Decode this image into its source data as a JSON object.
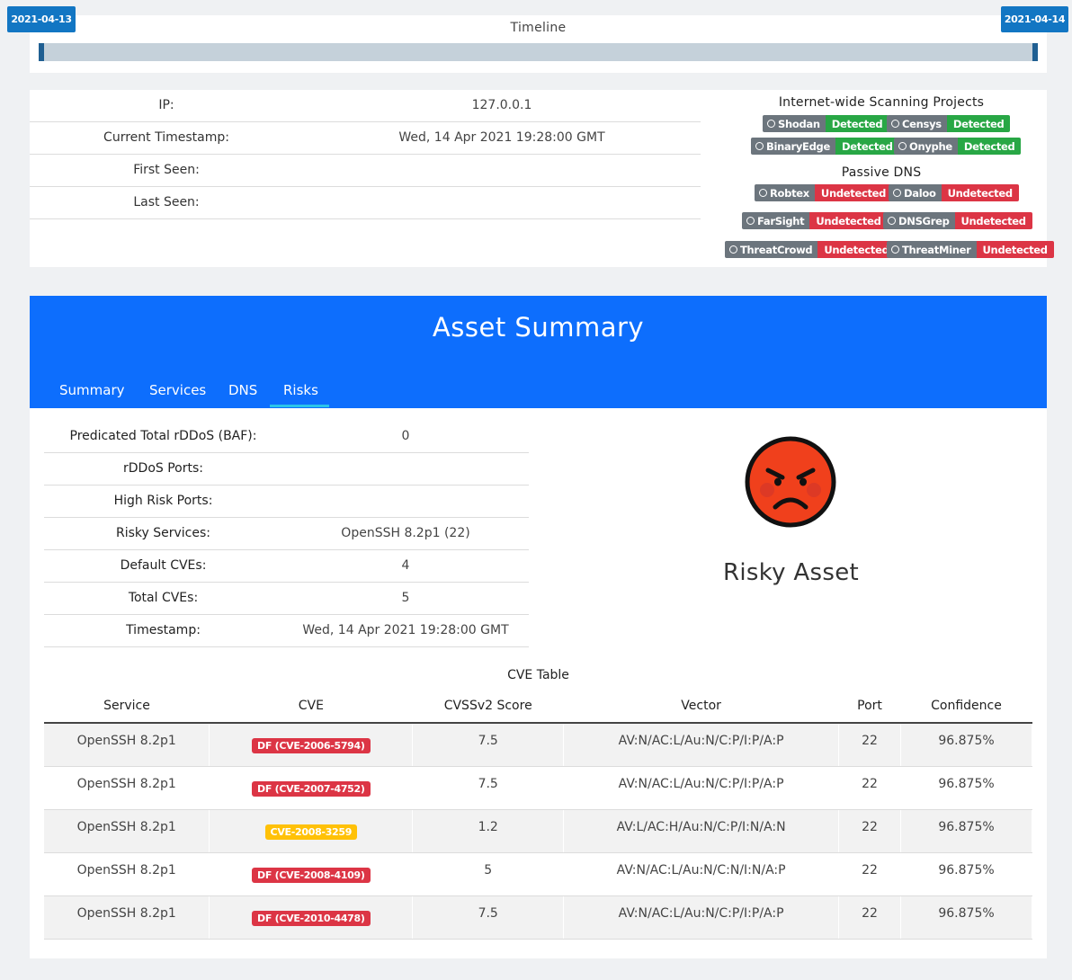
{
  "timeline": {
    "title": "Timeline",
    "start_date": "2021-04-13",
    "end_date": "2021-04-14"
  },
  "info": {
    "rows": [
      {
        "label": "IP:",
        "value": "127.0.0.1"
      },
      {
        "label": "Current Timestamp:",
        "value": "Wed, 14 Apr 2021 19:28:00 GMT"
      },
      {
        "label": "First Seen:",
        "value": ""
      },
      {
        "label": "Last Seen:",
        "value": ""
      }
    ]
  },
  "scanning": {
    "heading": "Internet-wide Scanning Projects",
    "tags": [
      {
        "name": "Shodan",
        "status": "Detected"
      },
      {
        "name": "Censys",
        "status": "Detected"
      },
      {
        "name": "BinaryEdge",
        "status": "Detected"
      },
      {
        "name": "Onyphe",
        "status": "Detected"
      }
    ]
  },
  "passive_dns": {
    "heading": "Passive DNS",
    "tags": [
      {
        "name": "Robtex",
        "status": "Undetected"
      },
      {
        "name": "Daloo",
        "status": "Undetected"
      },
      {
        "name": "FarSight",
        "status": "Undetected"
      },
      {
        "name": "DNSGrep",
        "status": "Undetected"
      },
      {
        "name": "ThreatCrowd",
        "status": "Undetected"
      },
      {
        "name": "ThreatMiner",
        "status": "Undetected"
      }
    ]
  },
  "asset": {
    "title": "Asset Summary",
    "tabs": [
      "Summary",
      "Services",
      "DNS",
      "Risks"
    ],
    "active_tab": "Risks",
    "risk_rows": [
      {
        "label": "Predicated Total rDDoS (BAF):",
        "value": "0"
      },
      {
        "label": "rDDoS Ports:",
        "value": ""
      },
      {
        "label": "High Risk Ports:",
        "value": ""
      },
      {
        "label": "Risky Services:",
        "value": "OpenSSH 8.2p1 (22)"
      },
      {
        "label": "Default CVEs:",
        "value": "4"
      },
      {
        "label": "Total CVEs:",
        "value": "5"
      },
      {
        "label": "Timestamp:",
        "value": "Wed, 14 Apr 2021 19:28:00 GMT"
      }
    ],
    "verdict": "Risky Asset",
    "verdict_icon": "angry-face-icon"
  },
  "cve_table": {
    "title": "CVE Table",
    "headers": [
      "Service",
      "CVE",
      "CVSSv2 Score",
      "Vector",
      "Port",
      "Confidence"
    ],
    "rows": [
      {
        "service": "OpenSSH 8.2p1",
        "cve": "DF (CVE-2006-5794)",
        "cve_color": "red",
        "score": "7.5",
        "vector": "AV:N/AC:L/Au:N/C:P/I:P/A:P",
        "port": "22",
        "confidence": "96.875%"
      },
      {
        "service": "OpenSSH 8.2p1",
        "cve": "DF (CVE-2007-4752)",
        "cve_color": "red",
        "score": "7.5",
        "vector": "AV:N/AC:L/Au:N/C:P/I:P/A:P",
        "port": "22",
        "confidence": "96.875%"
      },
      {
        "service": "OpenSSH 8.2p1",
        "cve": "CVE-2008-3259",
        "cve_color": "yellow",
        "score": "1.2",
        "vector": "AV:L/AC:H/Au:N/C:P/I:N/A:N",
        "port": "22",
        "confidence": "96.875%"
      },
      {
        "service": "OpenSSH 8.2p1",
        "cve": "DF (CVE-2008-4109)",
        "cve_color": "red",
        "score": "5",
        "vector": "AV:N/AC:L/Au:N/C:N/I:N/A:P",
        "port": "22",
        "confidence": "96.875%"
      },
      {
        "service": "OpenSSH 8.2p1",
        "cve": "DF (CVE-2010-4478)",
        "cve_color": "red",
        "score": "7.5",
        "vector": "AV:N/AC:L/Au:N/C:P/I:P/A:P",
        "port": "22",
        "confidence": "96.875%"
      }
    ]
  },
  "colors": {
    "header_blue": "#0d6efd",
    "date_badge": "#1276c3",
    "detected": "#28a745",
    "undetected": "#dc3545",
    "tag_name": "#6c757d",
    "tab_underline": "#2bc4e8"
  }
}
